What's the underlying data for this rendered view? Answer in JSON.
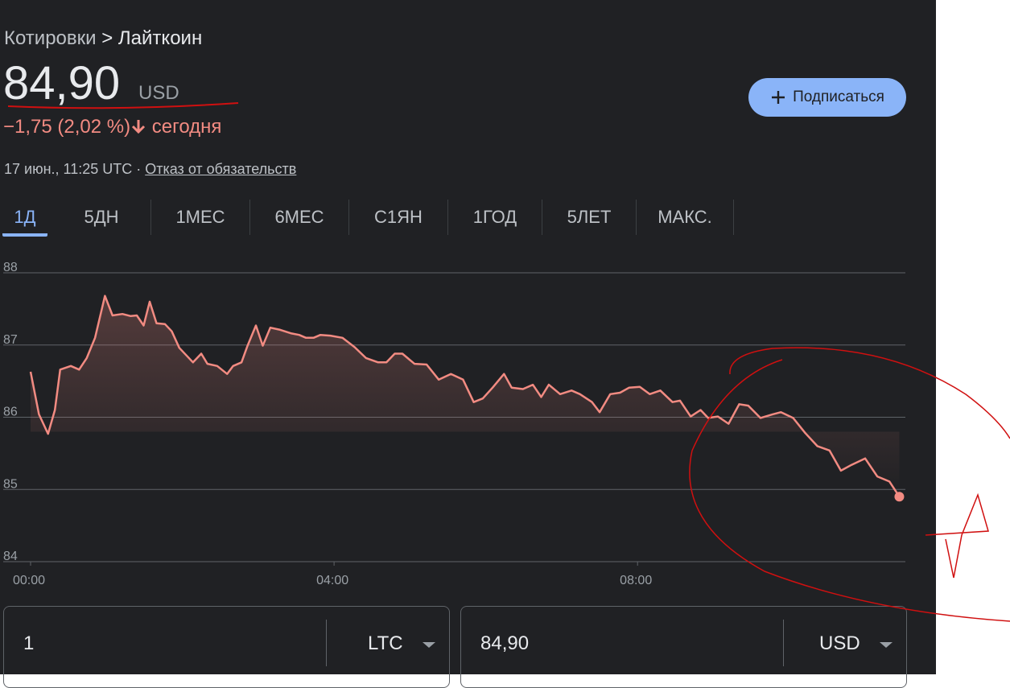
{
  "header": {
    "breadcrumb_parent": "Котировки",
    "breadcrumb_separator": ">",
    "breadcrumb_current": "Лайткоин",
    "price": "84,90",
    "currency": "USD",
    "change": "−1,75 (2,02 %)",
    "change_period": "сегодня",
    "timestamp": "17 июн., 11:25 UTC ·",
    "disclaimer": "Отказ от обязательств",
    "subscribe": "Подписаться"
  },
  "tabs": [
    "1Д",
    "5ДН",
    "1МЕС",
    "6МЕС",
    "С1ЯН",
    "1ГОД",
    "5ЛЕТ",
    "МАКС."
  ],
  "converter": {
    "from_amount": "1",
    "from_currency": "LTC",
    "to_amount": "84,90",
    "to_currency": "USD"
  },
  "chart_data": {
    "type": "line",
    "color": "#f28b82",
    "grid": true,
    "xlim": [
      0,
      11.53
    ],
    "ylim": [
      84,
      88
    ],
    "xticks": [
      {
        "value": 0,
        "label": "00:00"
      },
      {
        "value": 4,
        "label": "04:00"
      },
      {
        "value": 8,
        "label": "08:00"
      }
    ],
    "yticks": [
      84,
      85,
      86,
      87,
      88
    ],
    "x": [
      0,
      0.11,
      0.23,
      0.32,
      0.39,
      0.53,
      0.64,
      0.74,
      0.85,
      0.98,
      1.08,
      1.21,
      1.32,
      1.4,
      1.49,
      1.57,
      1.66,
      1.77,
      1.86,
      1.96,
      2.14,
      2.25,
      2.33,
      2.46,
      2.59,
      2.67,
      2.78,
      2.86,
      2.97,
      3.06,
      3.16,
      3.29,
      3.44,
      3.54,
      3.63,
      3.73,
      3.82,
      3.95,
      4.11,
      4.27,
      4.42,
      4.58,
      4.69,
      4.8,
      4.9,
      5.06,
      5.22,
      5.38,
      5.54,
      5.7,
      5.84,
      5.96,
      6.09,
      6.24,
      6.34,
      6.49,
      6.62,
      6.73,
      6.83,
      6.98,
      7.13,
      7.24,
      7.4,
      7.5,
      7.64,
      7.77,
      7.89,
      8.03,
      8.16,
      8.3,
      8.46,
      8.56,
      8.7,
      8.83,
      8.93,
      9.06,
      9.2,
      9.34,
      9.46,
      9.62,
      9.78,
      9.89,
      10.05,
      10.21,
      10.37,
      10.53,
      10.68,
      10.82,
      11.0,
      11.16,
      11.32,
      11.45
    ],
    "values": [
      86.63,
      86.04,
      85.77,
      86.1,
      86.66,
      86.71,
      86.66,
      86.82,
      87.1,
      87.68,
      87.41,
      87.43,
      87.4,
      87.41,
      87.27,
      87.6,
      87.3,
      87.29,
      87.19,
      86.96,
      86.76,
      86.88,
      86.74,
      86.71,
      86.6,
      86.71,
      86.76,
      86.99,
      87.27,
      86.99,
      87.24,
      87.21,
      87.16,
      87.14,
      87.1,
      87.1,
      87.14,
      87.13,
      87.1,
      86.97,
      86.82,
      86.76,
      86.76,
      86.88,
      86.88,
      86.74,
      86.73,
      86.52,
      86.6,
      86.52,
      86.21,
      86.26,
      86.41,
      86.6,
      86.41,
      86.39,
      86.45,
      86.28,
      86.45,
      86.32,
      86.37,
      86.32,
      86.21,
      86.07,
      86.32,
      86.34,
      86.41,
      86.42,
      86.32,
      86.37,
      86.21,
      86.23,
      86.01,
      86.1,
      85.99,
      86.01,
      85.91,
      86.18,
      86.16,
      85.99,
      86.04,
      86.07,
      85.99,
      85.78,
      85.6,
      85.54,
      85.26,
      85.34,
      85.43,
      85.18,
      85.11,
      84.9
    ]
  }
}
